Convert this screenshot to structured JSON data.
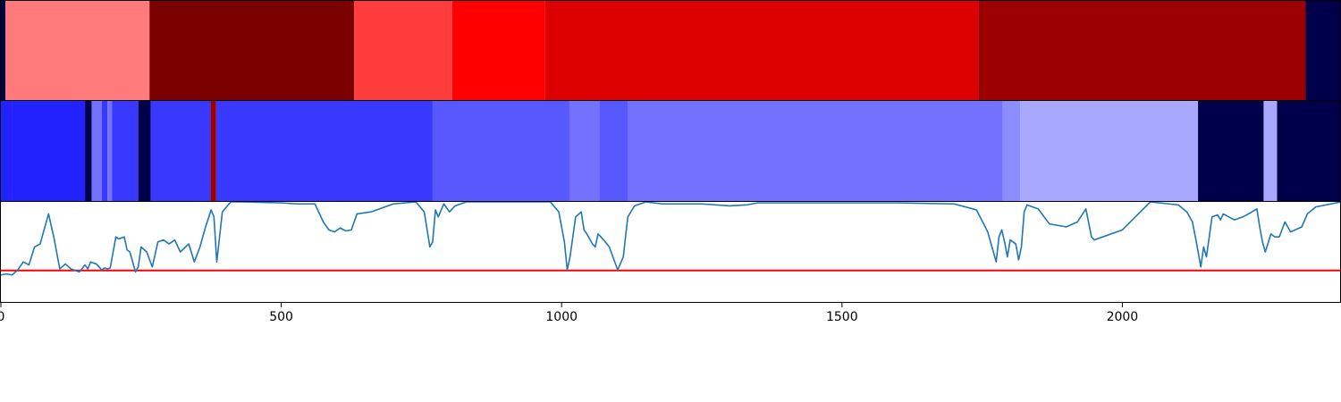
{
  "chart_data": [
    {
      "type": "heatmap",
      "title": "",
      "xlim": [
        0,
        2390
      ],
      "colors": {
        "bright-red": "#ff0000",
        "light-red": "#ff7b7b",
        "dark-red": "#7b0000",
        "navy": "#00004a"
      },
      "segments": [
        {
          "start": 0,
          "end": 8,
          "color": "#00004a"
        },
        {
          "start": 8,
          "end": 265,
          "color": "#ff7b7b"
        },
        {
          "start": 265,
          "end": 630,
          "color": "#7b0000"
        },
        {
          "start": 630,
          "end": 805,
          "color": "#ff3c3c"
        },
        {
          "start": 805,
          "end": 970,
          "color": "#ff0000"
        },
        {
          "start": 970,
          "end": 1743,
          "color": "#dc0000"
        },
        {
          "start": 1743,
          "end": 2327,
          "color": "#9c0000"
        },
        {
          "start": 2327,
          "end": 2390,
          "color": "#00004a"
        }
      ]
    },
    {
      "type": "heatmap",
      "title": "",
      "xlim": [
        0,
        2390
      ],
      "colors": {
        "bright-blue": "#2222ff",
        "light-blue": "#a8a8ff",
        "navy": "#00004a",
        "red-stripe": "#9c0000"
      },
      "segments": [
        {
          "start": 0,
          "end": 20,
          "color": "#2222ff"
        },
        {
          "start": 20,
          "end": 150,
          "color": "#2222ff"
        },
        {
          "start": 150,
          "end": 162,
          "color": "#00004a"
        },
        {
          "start": 162,
          "end": 180,
          "color": "#7272ff"
        },
        {
          "start": 180,
          "end": 190,
          "color": "#3838ff"
        },
        {
          "start": 190,
          "end": 198,
          "color": "#7272ff"
        },
        {
          "start": 198,
          "end": 245,
          "color": "#3838ff"
        },
        {
          "start": 245,
          "end": 267,
          "color": "#00004a"
        },
        {
          "start": 267,
          "end": 374,
          "color": "#3838ff"
        },
        {
          "start": 374,
          "end": 384,
          "color": "#9c0000"
        },
        {
          "start": 384,
          "end": 770,
          "color": "#3838ff"
        },
        {
          "start": 770,
          "end": 1014,
          "color": "#5858ff"
        },
        {
          "start": 1014,
          "end": 1067,
          "color": "#7272ff"
        },
        {
          "start": 1067,
          "end": 1119,
          "color": "#5858ff"
        },
        {
          "start": 1119,
          "end": 1787,
          "color": "#7272ff"
        },
        {
          "start": 1787,
          "end": 1818,
          "color": "#8c8cff"
        },
        {
          "start": 1818,
          "end": 2135,
          "color": "#a8a8ff"
        },
        {
          "start": 2135,
          "end": 2252,
          "color": "#00004a"
        },
        {
          "start": 2252,
          "end": 2276,
          "color": "#a8a8ff"
        },
        {
          "start": 2276,
          "end": 2390,
          "color": "#00004a"
        }
      ]
    },
    {
      "type": "line",
      "title": "",
      "xlabel": "",
      "ylabel": "",
      "xlim": [
        0,
        2390
      ],
      "ylim": [
        0,
        1
      ],
      "grid": false,
      "line_color": "#1f77b4",
      "threshold": {
        "y": 0.315,
        "color": "#ff0000"
      },
      "xticks": [
        0,
        500,
        1000,
        1500,
        2000
      ],
      "xtick_labels": [
        "0",
        "500",
        "1000",
        "1500",
        "2000"
      ],
      "series": [
        {
          "x": [
            0,
            10,
            20,
            30,
            40,
            50,
            60,
            70,
            85,
            95,
            105,
            115,
            125,
            140,
            150,
            155,
            160,
            170,
            180,
            185,
            190,
            195,
            205,
            210,
            220,
            225,
            230,
            240,
            245,
            250,
            260,
            270,
            280,
            290,
            300,
            310,
            320,
            335,
            345,
            355,
            365,
            375,
            380,
            385,
            395,
            410,
            430,
            500,
            530,
            560,
            575,
            585,
            595,
            605,
            615,
            625,
            635,
            660,
            700,
            740,
            755,
            765,
            770,
            775,
            780,
            790,
            800,
            810,
            830,
            900,
            980,
            995,
            1005,
            1010,
            1015,
            1025,
            1035,
            1040,
            1045,
            1050,
            1055,
            1060,
            1065,
            1075,
            1085,
            1100,
            1110,
            1118,
            1130,
            1150,
            1180,
            1250,
            1300,
            1330,
            1350,
            1400,
            1500,
            1600,
            1700,
            1740,
            1760,
            1770,
            1775,
            1780,
            1785,
            1790,
            1795,
            1800,
            1810,
            1815,
            1820,
            1825,
            1830,
            1850,
            1870,
            1900,
            1920,
            1935,
            1945,
            1950,
            2000,
            2050,
            2100,
            2115,
            2125,
            2132,
            2140,
            2145,
            2150,
            2160,
            2170,
            2175,
            2180,
            2200,
            2215,
            2225,
            2240,
            2245,
            2250,
            2255,
            2265,
            2272,
            2280,
            2290,
            2300,
            2320,
            2330,
            2345,
            2390
          ],
          "y": [
            0.27,
            0.28,
            0.27,
            0.32,
            0.4,
            0.37,
            0.55,
            0.58,
            0.88,
            0.63,
            0.33,
            0.38,
            0.33,
            0.3,
            0.37,
            0.33,
            0.4,
            0.38,
            0.32,
            0.34,
            0.33,
            0.34,
            0.65,
            0.63,
            0.65,
            0.52,
            0.5,
            0.3,
            0.35,
            0.55,
            0.5,
            0.35,
            0.6,
            0.62,
            0.58,
            0.62,
            0.5,
            0.58,
            0.4,
            0.55,
            0.75,
            0.92,
            0.85,
            0.4,
            0.9,
            1.0,
            1.0,
            0.99,
            0.98,
            0.98,
            0.8,
            0.72,
            0.7,
            0.74,
            0.71,
            0.72,
            0.88,
            0.9,
            0.98,
            1.0,
            0.9,
            0.55,
            0.6,
            0.92,
            0.85,
            0.98,
            0.9,
            0.96,
            1.0,
            1.0,
            1.0,
            0.9,
            0.6,
            0.32,
            0.45,
            0.85,
            0.9,
            0.72,
            0.68,
            0.63,
            0.58,
            0.55,
            0.68,
            0.62,
            0.55,
            0.32,
            0.45,
            0.85,
            0.96,
            1.0,
            0.98,
            0.98,
            0.96,
            0.97,
            0.99,
            0.99,
            0.99,
            0.99,
            0.98,
            0.92,
            0.7,
            0.5,
            0.4,
            0.65,
            0.72,
            0.6,
            0.45,
            0.62,
            0.58,
            0.42,
            0.55,
            0.9,
            0.97,
            0.93,
            0.78,
            0.75,
            0.8,
            0.93,
            0.65,
            0.62,
            0.72,
            1.0,
            0.97,
            0.9,
            0.8,
            0.6,
            0.35,
            0.55,
            0.45,
            0.85,
            0.87,
            0.82,
            0.88,
            0.82,
            0.85,
            0.88,
            0.93,
            0.75,
            0.6,
            0.5,
            0.68,
            0.65,
            0.65,
            0.8,
            0.7,
            0.75,
            0.88,
            0.95,
            1.0
          ]
        }
      ]
    }
  ]
}
